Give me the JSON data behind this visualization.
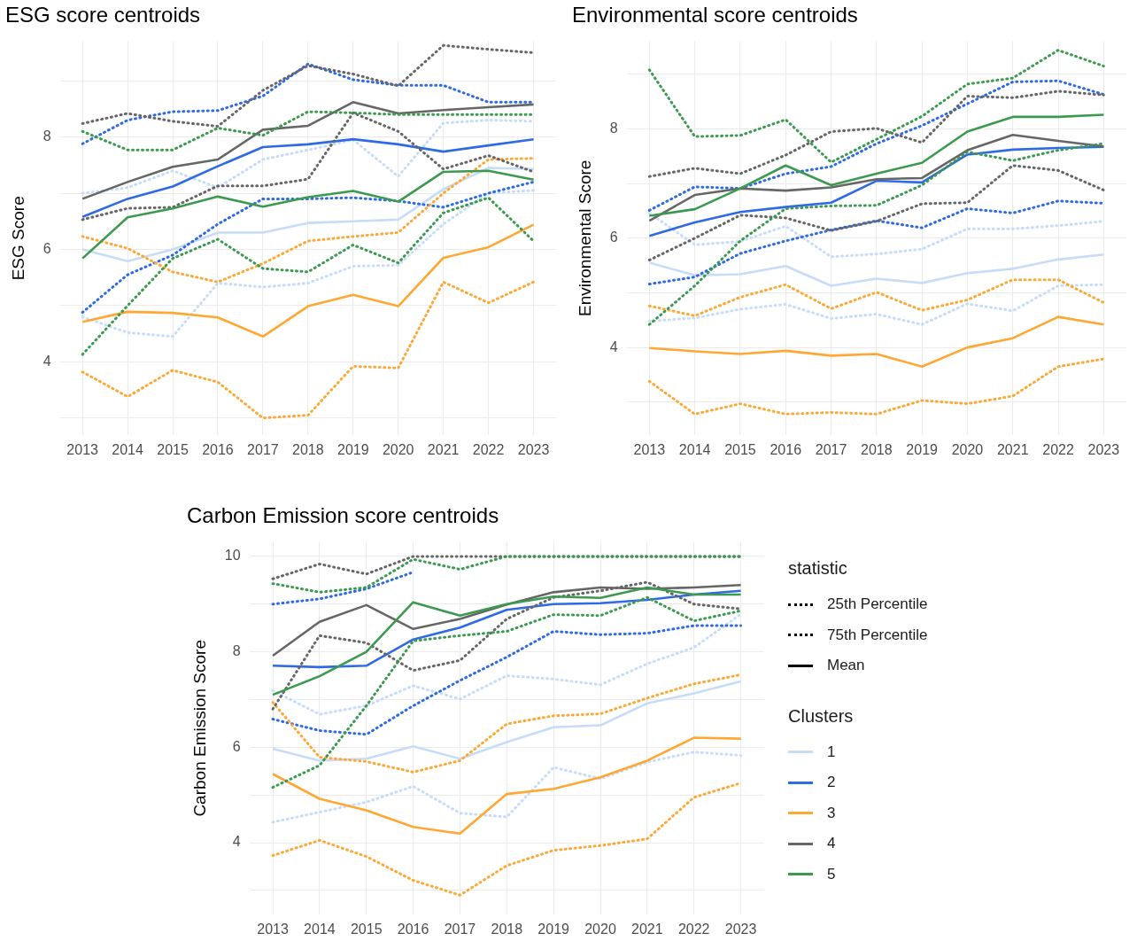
{
  "chart_data": [
    {
      "type": "line",
      "title": "ESG score centroids",
      "ylabel": "ESG Score",
      "categories": [
        "2013",
        "2014",
        "2015",
        "2016",
        "2017",
        "2018",
        "2019",
        "2020",
        "2021",
        "2022",
        "2023"
      ],
      "ylim": [
        2.7,
        9.7
      ],
      "yticks": [
        {
          "value": 3,
          "label": null
        },
        4,
        {
          "value": 5,
          "label": null
        },
        6,
        {
          "value": 7,
          "label": null
        },
        8,
        {
          "value": 9,
          "label": null
        }
      ],
      "grid": true,
      "marker": "none",
      "legend": "right",
      "legend_title": "Clusters",
      "series": [
        {
          "color": "#c6dcf8",
          "line_style": "dotted",
          "values": [
            4.8,
            4.52,
            4.45,
            5.4,
            5.33,
            5.4,
            5.7,
            5.72,
            6.45,
            7.0,
            7.05
          ]
        },
        {
          "color": "#c6dcf8",
          "line_style": "dotted",
          "values": [
            7.0,
            7.1,
            7.4,
            7.1,
            7.6,
            7.77,
            7.95,
            7.3,
            8.25,
            8.3,
            8.28
          ]
        },
        {
          "name": "1",
          "color": "#c6dcf8",
          "line_style": "solid",
          "values": [
            6.0,
            5.79,
            6.0,
            6.3,
            6.3,
            6.47,
            6.5,
            6.53,
            7.07,
            7.45,
            7.43
          ]
        },
        {
          "color": "#2f6ae6",
          "line_style": "dotted",
          "values": [
            4.88,
            5.55,
            5.9,
            6.45,
            6.9,
            6.9,
            6.92,
            6.86,
            6.75,
            7.0,
            7.2
          ]
        },
        {
          "color": "#2f6ae6",
          "line_style": "dotted",
          "values": [
            7.88,
            8.3,
            8.45,
            8.47,
            8.73,
            9.3,
            9.02,
            8.92,
            8.92,
            8.62,
            8.62
          ]
        },
        {
          "name": "2",
          "color": "#2f6ae6",
          "line_style": "solid",
          "values": [
            6.58,
            6.9,
            7.12,
            7.48,
            7.82,
            7.87,
            7.96,
            7.87,
            7.74,
            7.85,
            7.96
          ]
        },
        {
          "color": "#ffa733",
          "line_style": "dotted",
          "values": [
            3.82,
            3.38,
            3.85,
            3.64,
            3.0,
            3.05,
            3.92,
            3.89,
            5.42,
            5.05,
            5.42
          ]
        },
        {
          "color": "#ffa733",
          "line_style": "dotted",
          "values": [
            6.23,
            6.02,
            5.6,
            5.42,
            5.75,
            6.15,
            6.23,
            6.3,
            7.0,
            7.6,
            7.62
          ]
        },
        {
          "name": "3",
          "color": "#ffa733",
          "line_style": "solid",
          "values": [
            4.71,
            4.89,
            4.87,
            4.79,
            4.45,
            4.99,
            5.19,
            4.99,
            5.85,
            6.04,
            6.44
          ]
        },
        {
          "color": "#666666",
          "line_style": "dotted",
          "values": [
            6.53,
            6.73,
            6.75,
            7.13,
            7.13,
            7.25,
            8.43,
            8.1,
            7.43,
            7.67,
            7.38
          ]
        },
        {
          "color": "#666666",
          "line_style": "dotted",
          "values": [
            8.24,
            8.42,
            8.28,
            8.19,
            8.83,
            9.27,
            9.12,
            8.91,
            9.63,
            9.56,
            9.5
          ]
        },
        {
          "name": "4",
          "color": "#666666",
          "line_style": "solid",
          "values": [
            6.9,
            7.2,
            7.47,
            7.6,
            8.13,
            8.2,
            8.62,
            8.42,
            8.48,
            8.53,
            8.58
          ]
        },
        {
          "color": "#3b9a4f",
          "line_style": "dotted",
          "values": [
            4.13,
            5.0,
            5.84,
            6.18,
            5.66,
            5.6,
            6.08,
            5.76,
            6.65,
            6.92,
            6.15
          ]
        },
        {
          "color": "#3b9a4f",
          "line_style": "dotted",
          "values": [
            8.1,
            7.77,
            7.77,
            8.16,
            8.03,
            8.45,
            8.43,
            8.4,
            8.4,
            8.4,
            8.4
          ]
        },
        {
          "name": "5",
          "color": "#3b9a4f",
          "line_style": "solid",
          "values": [
            5.84,
            6.57,
            6.73,
            6.94,
            6.76,
            6.93,
            7.04,
            6.85,
            7.38,
            7.4,
            7.24
          ]
        }
      ]
    },
    {
      "type": "line",
      "title": "Environmental score centroids",
      "ylabel": "Environmental Score",
      "categories": [
        "2013",
        "2014",
        "2015",
        "2016",
        "2017",
        "2018",
        "2019",
        "2020",
        "2021",
        "2022",
        "2023"
      ],
      "ylim": [
        2.4,
        9.6
      ],
      "yticks": [
        {
          "value": 3,
          "label": null
        },
        4,
        {
          "value": 5,
          "label": null
        },
        6,
        {
          "value": 7,
          "label": null
        },
        8,
        {
          "value": 9,
          "label": null
        }
      ],
      "grid": true,
      "marker": "none",
      "series": [
        {
          "color": "#c6dcf8",
          "line_style": "dotted",
          "values": [
            4.48,
            4.54,
            4.7,
            4.79,
            4.53,
            4.61,
            4.42,
            4.8,
            4.67,
            5.13,
            5.15
          ]
        },
        {
          "color": "#c6dcf8",
          "line_style": "dotted",
          "values": [
            6.46,
            5.88,
            5.94,
            6.22,
            5.66,
            5.71,
            5.8,
            6.17,
            6.17,
            6.23,
            6.31
          ]
        },
        {
          "name": "1",
          "color": "#c6dcf8",
          "line_style": "solid",
          "values": [
            5.55,
            5.32,
            5.34,
            5.49,
            5.13,
            5.26,
            5.18,
            5.36,
            5.44,
            5.61,
            5.7
          ]
        },
        {
          "color": "#2f6ae6",
          "line_style": "dotted",
          "values": [
            5.16,
            5.29,
            5.72,
            5.95,
            6.15,
            6.32,
            6.19,
            6.54,
            6.46,
            6.68,
            6.64
          ]
        },
        {
          "color": "#2f6ae6",
          "line_style": "dotted",
          "values": [
            6.51,
            6.94,
            6.91,
            7.18,
            7.31,
            7.73,
            8.06,
            8.46,
            8.86,
            8.88,
            8.63
          ]
        },
        {
          "name": "2",
          "color": "#2f6ae6",
          "line_style": "solid",
          "values": [
            6.04,
            6.29,
            6.48,
            6.57,
            6.65,
            7.05,
            7.02,
            7.53,
            7.62,
            7.65,
            7.67
          ]
        },
        {
          "color": "#ffa733",
          "line_style": "dotted",
          "values": [
            3.38,
            2.78,
            2.97,
            2.78,
            2.81,
            2.78,
            3.03,
            2.97,
            3.11,
            3.65,
            3.79
          ]
        },
        {
          "color": "#ffa733",
          "line_style": "dotted",
          "values": [
            4.76,
            4.58,
            4.92,
            5.15,
            4.71,
            5.01,
            4.68,
            4.87,
            5.24,
            5.24,
            4.82
          ]
        },
        {
          "name": "3",
          "color": "#ffa733",
          "line_style": "solid",
          "values": [
            3.99,
            3.93,
            3.88,
            3.94,
            3.85,
            3.88,
            3.65,
            4.0,
            4.17,
            4.56,
            4.42
          ]
        },
        {
          "color": "#666666",
          "line_style": "dotted",
          "values": [
            5.6,
            6.0,
            6.42,
            6.37,
            6.14,
            6.31,
            6.63,
            6.65,
            7.33,
            7.24,
            6.88
          ]
        },
        {
          "color": "#666666",
          "line_style": "dotted",
          "values": [
            7.13,
            7.28,
            7.18,
            7.52,
            7.95,
            8.01,
            7.75,
            8.6,
            8.57,
            8.69,
            8.62
          ]
        },
        {
          "name": "4",
          "color": "#666666",
          "line_style": "solid",
          "values": [
            6.32,
            6.79,
            6.91,
            6.87,
            6.93,
            7.08,
            7.1,
            7.61,
            7.89,
            7.78,
            7.68
          ]
        },
        {
          "color": "#3b9a4f",
          "line_style": "dotted",
          "values": [
            4.42,
            5.13,
            5.95,
            6.54,
            6.59,
            6.6,
            6.97,
            7.58,
            7.42,
            7.61,
            7.73
          ]
        },
        {
          "color": "#3b9a4f",
          "line_style": "dotted",
          "values": [
            9.08,
            7.86,
            7.88,
            8.17,
            7.39,
            7.81,
            8.23,
            8.82,
            8.93,
            9.44,
            9.15
          ]
        },
        {
          "name": "5",
          "color": "#3b9a4f",
          "line_style": "solid",
          "values": [
            6.41,
            6.53,
            6.91,
            7.33,
            6.97,
            7.18,
            7.38,
            7.95,
            8.22,
            8.22,
            8.26
          ]
        }
      ]
    },
    {
      "type": "line",
      "title": "Carbon Emission score centroids",
      "ylabel": "Carbon Emission Score",
      "categories": [
        "2013",
        "2014",
        "2015",
        "2016",
        "2017",
        "2018",
        "2019",
        "2020",
        "2021",
        "2022",
        "2023"
      ],
      "ylim": [
        2.5,
        10.3
      ],
      "yticks": [
        {
          "value": 3,
          "label": null
        },
        4,
        {
          "value": 5,
          "label": null
        },
        6,
        {
          "value": 7,
          "label": null
        },
        8,
        {
          "value": 9,
          "label": null
        },
        10
      ],
      "grid": true,
      "marker": "none",
      "annotations": [
        "statistic",
        "25th Percentile",
        "75th Percentile",
        "Mean"
      ],
      "series": [
        {
          "color": "#c6dcf8",
          "line_style": "dotted",
          "values": [
            4.43,
            4.64,
            4.85,
            5.18,
            4.62,
            4.54,
            5.58,
            5.34,
            5.69,
            5.9,
            5.83
          ]
        },
        {
          "color": "#c6dcf8",
          "line_style": "dotted",
          "values": [
            7.19,
            6.69,
            6.87,
            7.29,
            7.01,
            7.5,
            7.43,
            7.31,
            7.75,
            8.09,
            8.79
          ]
        },
        {
          "name": "1",
          "color": "#c6dcf8",
          "line_style": "solid",
          "values": [
            5.97,
            5.72,
            5.76,
            6.02,
            5.76,
            6.11,
            6.42,
            6.46,
            6.92,
            7.13,
            7.38
          ]
        },
        {
          "color": "#2f6ae6",
          "line_style": "dotted",
          "values": [
            6.59,
            6.35,
            6.27,
            6.87,
            7.4,
            7.89,
            8.43,
            8.36,
            8.39,
            8.55,
            8.55
          ]
        },
        {
          "color": "#2f6ae6",
          "line_style": "dotted",
          "values": [
            9.0,
            9.11,
            9.32,
            9.67,
            null,
            null,
            null,
            null,
            null,
            null,
            null
          ]
        },
        {
          "name": "2",
          "color": "#2f6ae6",
          "line_style": "solid",
          "values": [
            7.71,
            7.68,
            7.71,
            8.26,
            8.51,
            8.88,
            9.0,
            9.02,
            9.09,
            9.2,
            9.28
          ]
        },
        {
          "color": "#ffa733",
          "line_style": "dotted",
          "values": [
            3.73,
            4.05,
            3.71,
            3.21,
            2.9,
            3.52,
            3.84,
            3.94,
            4.08,
            4.95,
            5.25
          ]
        },
        {
          "color": "#ffa733",
          "line_style": "dotted",
          "values": [
            6.94,
            5.79,
            5.7,
            5.48,
            5.72,
            6.49,
            6.66,
            6.7,
            7.03,
            7.33,
            7.52
          ]
        },
        {
          "name": "3",
          "color": "#ffa733",
          "line_style": "solid",
          "values": [
            5.44,
            4.92,
            4.68,
            4.33,
            4.19,
            5.02,
            5.13,
            5.37,
            5.72,
            6.2,
            6.18
          ]
        },
        {
          "color": "#666666",
          "line_style": "dotted",
          "values": [
            6.8,
            8.34,
            8.19,
            7.61,
            7.82,
            8.69,
            9.14,
            9.28,
            9.46,
            9.0,
            8.9
          ]
        },
        {
          "color": "#666666",
          "line_style": "dotted",
          "values": [
            9.53,
            9.84,
            9.63,
            10,
            10,
            10,
            10,
            10,
            10,
            10,
            10
          ]
        },
        {
          "name": "4",
          "color": "#666666",
          "line_style": "solid",
          "values": [
            7.92,
            8.63,
            8.98,
            8.48,
            8.69,
            8.99,
            9.25,
            9.35,
            9.32,
            9.35,
            9.4
          ]
        },
        {
          "color": "#3b9a4f",
          "line_style": "dotted",
          "values": [
            5.16,
            5.62,
            6.87,
            8.23,
            8.34,
            8.43,
            8.78,
            8.76,
            9.14,
            8.65,
            8.86
          ]
        },
        {
          "color": "#3b9a4f",
          "line_style": "dotted",
          "values": [
            9.43,
            9.25,
            9.35,
            9.94,
            9.73,
            10,
            10,
            10,
            10,
            10,
            10
          ]
        },
        {
          "name": "5",
          "color": "#3b9a4f",
          "line_style": "solid",
          "values": [
            7.1,
            7.49,
            8.0,
            9.04,
            8.76,
            9.0,
            9.16,
            9.13,
            9.35,
            9.2,
            9.2
          ]
        }
      ]
    }
  ]
}
